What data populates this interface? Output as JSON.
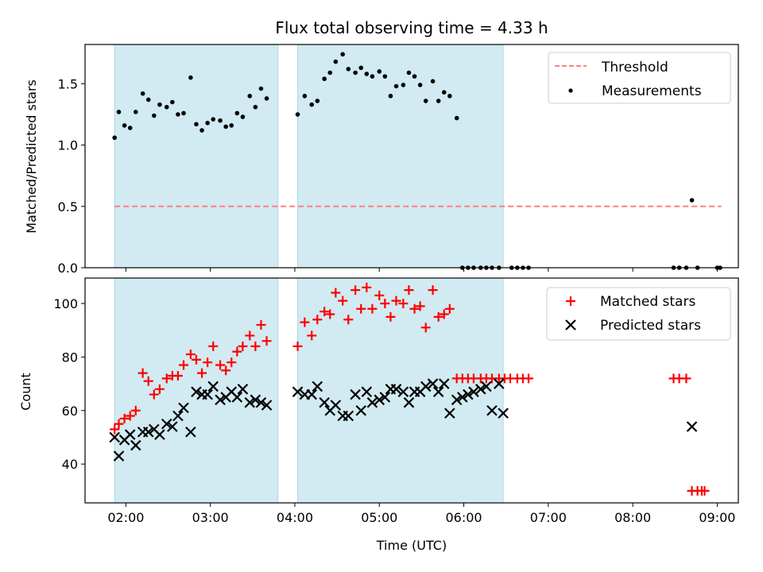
{
  "title": "Flux total observing time = 4.33 h",
  "colors": {
    "shade": "#add8e6",
    "threshold": "#ff7f7f",
    "matched": "#ff0000",
    "predicted": "#000000",
    "measurement": "#000000"
  },
  "chart_data": [
    {
      "type": "scatter",
      "ylabel": "Matched/Predicted stars",
      "xlim": [
        "01:31",
        "09:15"
      ],
      "ylim": [
        0,
        1.82
      ],
      "ytick_labels": [
        "0.0",
        "0.5",
        "1.0",
        "1.5"
      ],
      "yticks": [
        0,
        0.5,
        1.0,
        1.5
      ],
      "xtick_labels": [
        "02:00",
        "03:00",
        "04:00",
        "05:00",
        "06:00",
        "07:00",
        "08:00",
        "09:00"
      ],
      "xticks": [
        "02:00",
        "03:00",
        "04:00",
        "05:00",
        "06:00",
        "07:00",
        "08:00",
        "09:00"
      ],
      "shaded_intervals": [
        [
          "01:52",
          "03:48"
        ],
        [
          "04:02",
          "06:28"
        ]
      ],
      "legend": {
        "position": "top-right",
        "entries": [
          "Threshold",
          "Measurements"
        ]
      },
      "threshold": {
        "name": "Threshold",
        "y": 0.5,
        "x": [
          "01:52",
          "09:03"
        ]
      },
      "series": [
        {
          "name": "Measurements",
          "marker": "dot",
          "x": [
            "01:52",
            "01:55",
            "01:59",
            "02:03",
            "02:07",
            "02:12",
            "02:16",
            "02:20",
            "02:24",
            "02:29",
            "02:33",
            "02:37",
            "02:41",
            "02:46",
            "02:50",
            "02:54",
            "02:58",
            "03:02",
            "03:07",
            "03:11",
            "03:15",
            "03:19",
            "03:23",
            "03:28",
            "03:32",
            "03:36",
            "03:40",
            "04:02",
            "04:07",
            "04:12",
            "04:16",
            "04:21",
            "04:25",
            "04:29",
            "04:34",
            "04:38",
            "04:43",
            "04:47",
            "04:51",
            "04:55",
            "05:00",
            "05:04",
            "05:08",
            "05:12",
            "05:17",
            "05:21",
            "05:25",
            "05:29",
            "05:33",
            "05:38",
            "05:42",
            "05:46",
            "05:50",
            "05:55",
            "05:59",
            "06:03",
            "06:07",
            "06:12",
            "06:16",
            "06:20",
            "06:25",
            "06:34",
            "06:38",
            "06:42",
            "06:46",
            "08:29",
            "08:33",
            "08:38",
            "08:42",
            "08:46",
            "09:00",
            "09:02"
          ],
          "y": [
            1.06,
            1.27,
            1.16,
            1.14,
            1.27,
            1.42,
            1.37,
            1.24,
            1.33,
            1.31,
            1.35,
            1.25,
            1.26,
            1.55,
            1.17,
            1.12,
            1.18,
            1.21,
            1.2,
            1.15,
            1.16,
            1.26,
            1.23,
            1.4,
            1.31,
            1.46,
            1.38,
            1.25,
            1.4,
            1.33,
            1.36,
            1.54,
            1.59,
            1.68,
            1.74,
            1.62,
            1.59,
            1.63,
            1.58,
            1.56,
            1.6,
            1.56,
            1.4,
            1.48,
            1.49,
            1.59,
            1.56,
            1.49,
            1.36,
            1.52,
            1.36,
            1.43,
            1.4,
            1.22,
            0.0,
            0.0,
            0.0,
            0.0,
            0.0,
            0.0,
            0.0,
            0.0,
            0.0,
            0.0,
            0.0,
            0.0,
            0.0,
            0.0,
            0.55,
            0.0,
            0.0,
            0.0
          ]
        }
      ]
    },
    {
      "type": "scatter",
      "xlabel": "Time (UTC)",
      "ylabel": "Count",
      "xlim": [
        "01:31",
        "09:15"
      ],
      "ylim": [
        25.5,
        109.5
      ],
      "ytick_labels": [
        "40",
        "60",
        "80",
        "100"
      ],
      "yticks": [
        40,
        60,
        80,
        100
      ],
      "xtick_labels": [
        "02:00",
        "03:00",
        "04:00",
        "05:00",
        "06:00",
        "07:00",
        "08:00",
        "09:00"
      ],
      "xticks": [
        "02:00",
        "03:00",
        "04:00",
        "05:00",
        "06:00",
        "07:00",
        "08:00",
        "09:00"
      ],
      "shaded_intervals": [
        [
          "01:52",
          "03:48"
        ],
        [
          "04:02",
          "06:28"
        ]
      ],
      "legend": {
        "position": "top-right",
        "entries": [
          "Matched stars",
          "Predicted stars"
        ]
      },
      "series": [
        {
          "name": "Matched stars",
          "marker": "plus",
          "x": [
            "01:52",
            "01:55",
            "01:59",
            "02:03",
            "02:07",
            "02:12",
            "02:16",
            "02:20",
            "02:24",
            "02:29",
            "02:33",
            "02:37",
            "02:41",
            "02:46",
            "02:50",
            "02:54",
            "02:58",
            "03:02",
            "03:07",
            "03:11",
            "03:15",
            "03:19",
            "03:23",
            "03:28",
            "03:32",
            "03:36",
            "03:40",
            "04:02",
            "04:07",
            "04:12",
            "04:16",
            "04:21",
            "04:25",
            "04:29",
            "04:34",
            "04:38",
            "04:43",
            "04:47",
            "04:51",
            "04:55",
            "05:00",
            "05:04",
            "05:08",
            "05:12",
            "05:17",
            "05:21",
            "05:25",
            "05:29",
            "05:33",
            "05:38",
            "05:42",
            "05:46",
            "05:50",
            "05:55",
            "05:59",
            "06:03",
            "06:07",
            "06:12",
            "06:16",
            "06:20",
            "06:25",
            "06:29",
            "06:33",
            "06:38",
            "06:42",
            "06:46",
            "08:29",
            "08:33",
            "08:38",
            "08:42",
            "08:46",
            "08:49",
            "08:51"
          ],
          "y": [
            53,
            55,
            57,
            58,
            60,
            74,
            71,
            66,
            68,
            72,
            73,
            73,
            77,
            81,
            79,
            74,
            78,
            84,
            77,
            75,
            78,
            82,
            84,
            88,
            84,
            92,
            86,
            84,
            93,
            88,
            94,
            97,
            96,
            104,
            101,
            94,
            105,
            98,
            106,
            98,
            103,
            100,
            95,
            101,
            100,
            105,
            98,
            99,
            91,
            105,
            95,
            96,
            98,
            72,
            72,
            72,
            72,
            72,
            72,
            72,
            72,
            72,
            72,
            72,
            72,
            72,
            72,
            72,
            72,
            30,
            30,
            30,
            30
          ]
        },
        {
          "name": "Predicted stars",
          "marker": "x",
          "x": [
            "01:52",
            "01:55",
            "01:59",
            "02:03",
            "02:07",
            "02:12",
            "02:16",
            "02:20",
            "02:24",
            "02:29",
            "02:33",
            "02:37",
            "02:41",
            "02:46",
            "02:50",
            "02:54",
            "02:58",
            "03:02",
            "03:07",
            "03:11",
            "03:15",
            "03:19",
            "03:23",
            "03:28",
            "03:32",
            "03:36",
            "03:40",
            "04:02",
            "04:07",
            "04:12",
            "04:16",
            "04:21",
            "04:25",
            "04:29",
            "04:34",
            "04:38",
            "04:43",
            "04:47",
            "04:51",
            "04:55",
            "05:00",
            "05:04",
            "05:08",
            "05:12",
            "05:17",
            "05:21",
            "05:25",
            "05:29",
            "05:33",
            "05:38",
            "05:42",
            "05:46",
            "05:50",
            "05:55",
            "05:59",
            "06:03",
            "06:07",
            "06:12",
            "06:16",
            "06:20",
            "06:25",
            "06:28",
            "08:42"
          ],
          "y": [
            50,
            43,
            49,
            51,
            47,
            52,
            52,
            53,
            51,
            55,
            54,
            58,
            61,
            52,
            67,
            66,
            66,
            69,
            64,
            65,
            67,
            65,
            68,
            63,
            64,
            63,
            62,
            67,
            66,
            66,
            69,
            63,
            60,
            62,
            58,
            58,
            66,
            60,
            67,
            63,
            64,
            65,
            68,
            68,
            67,
            63,
            67,
            67,
            69,
            70,
            67,
            70,
            59,
            64,
            65,
            66,
            67,
            68,
            69,
            60,
            70,
            59,
            54
          ]
        }
      ]
    }
  ]
}
